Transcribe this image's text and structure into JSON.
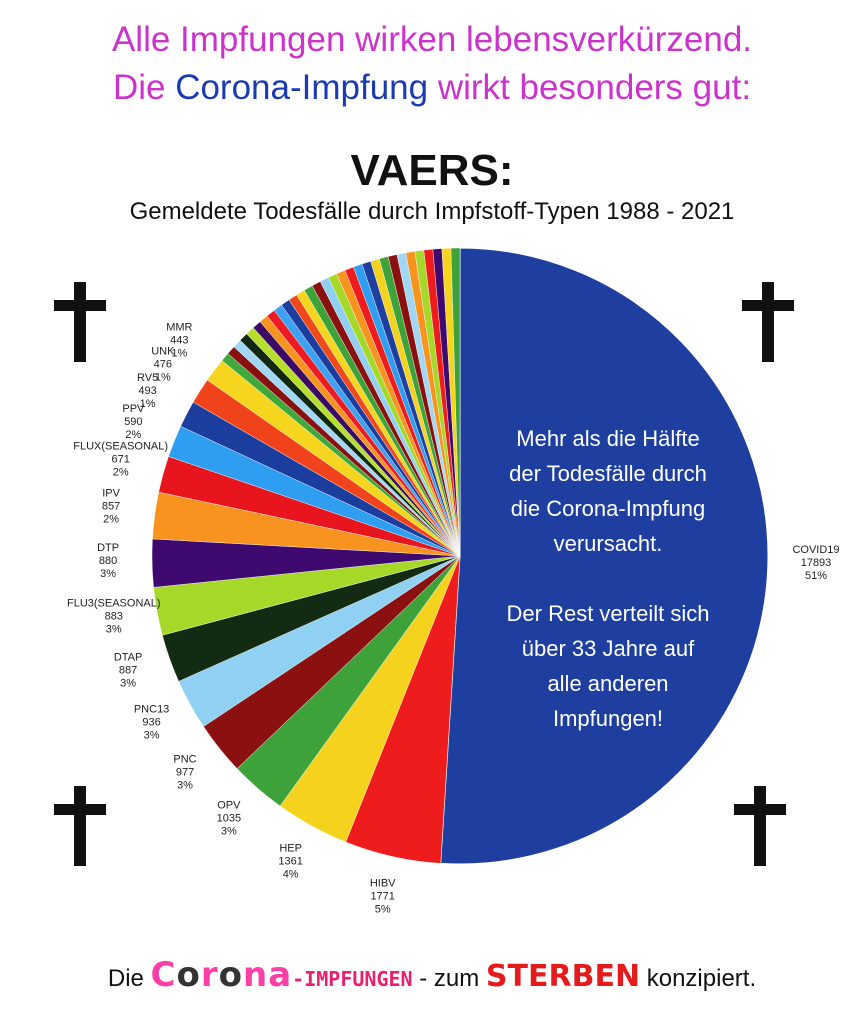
{
  "header": {
    "line1": "Alle Impfungen wirken lebensverkürzend.",
    "line2_pre": "Die ",
    "line2_blue": "Corona-Impfung",
    "line2_post": " wirkt besonders gut:",
    "color_magenta": "#cc33cc",
    "color_blue": "#1a3bb3"
  },
  "chart_data": {
    "type": "pie",
    "title": "VAERS:",
    "subtitle": "Gemeldete Todesfälle durch Impfstoff-Typen 1988 - 2021",
    "slices": [
      {
        "label": "COVID19",
        "value": 17893,
        "percent": "51%",
        "color": "#1f3fa0"
      },
      {
        "label": "HIBV",
        "value": 1771,
        "percent": "5%",
        "color": "#ee1c1c"
      },
      {
        "label": "HEP",
        "value": 1361,
        "percent": "4%",
        "color": "#f4d21e"
      },
      {
        "label": "OPV",
        "value": 1035,
        "percent": "3%",
        "color": "#3da23a"
      },
      {
        "label": "PNC",
        "value": 977,
        "percent": "3%",
        "color": "#8b1010"
      },
      {
        "label": "PNC13",
        "value": 936,
        "percent": "3%",
        "color": "#8fd0f3"
      },
      {
        "label": "DTAP",
        "value": 887,
        "percent": "3%",
        "color": "#132a13"
      },
      {
        "label": "FLU3(SEASONAL)",
        "value": 883,
        "percent": "3%",
        "color": "#a6d82a"
      },
      {
        "label": "DTP",
        "value": 880,
        "percent": "3%",
        "color": "#3f0a70"
      },
      {
        "label": "IPV",
        "value": 857,
        "percent": "2%",
        "color": "#f7931e"
      },
      {
        "label": "FLUX(SEASONAL)",
        "value": 671,
        "percent": "2%",
        "color": "#e8141e"
      },
      {
        "label": "PPV",
        "value": 590,
        "percent": "2%",
        "color": "#2f9df0"
      },
      {
        "label": "RV5",
        "value": 493,
        "percent": "1%",
        "color": "#1a3d9e"
      },
      {
        "label": "UNK",
        "value": 476,
        "percent": "1%",
        "color": "#f0431c"
      },
      {
        "label": "MMR",
        "value": 443,
        "percent": "1%",
        "color": "#f5d51e"
      }
    ],
    "others_colors": [
      "#3fa83a",
      "#8b1010",
      "#9fd7f5",
      "#102810",
      "#b7de2a",
      "#3a0a66",
      "#f7931e",
      "#ec1b24",
      "#3da0f0",
      "#1a3ea0",
      "#f04a1c",
      "#f5d51e",
      "#3da23a",
      "#8b1010",
      "#8fd0f3",
      "#a6d82a",
      "#f7931e",
      "#ee1c1c",
      "#2f9df0",
      "#1f3fa0",
      "#f4d21e",
      "#3da23a",
      "#8b1010",
      "#9fd7f5",
      "#f7931e",
      "#a6d82a",
      "#ee1c1c",
      "#3f0a70",
      "#f5d51e",
      "#3da23a"
    ],
    "annotation": [
      "Mehr als die Hälfte",
      "der Todesfälle durch",
      "die Corona-Impfung",
      "verursacht.",
      "",
      "Der Rest verteilt sich",
      "über 33 Jahre auf",
      "alle anderen",
      "Impfungen!"
    ],
    "legend": "none"
  },
  "footer": {
    "pre": "Die ",
    "corona_parts": [
      "C",
      "o",
      "r",
      "o",
      "na"
    ],
    "impf": "-IMPFUNGEN",
    "mid": " - zum ",
    "sterben": "STERBEN",
    "post": " konzipiert."
  },
  "decor": {
    "cross_icon": "latin-cross"
  }
}
